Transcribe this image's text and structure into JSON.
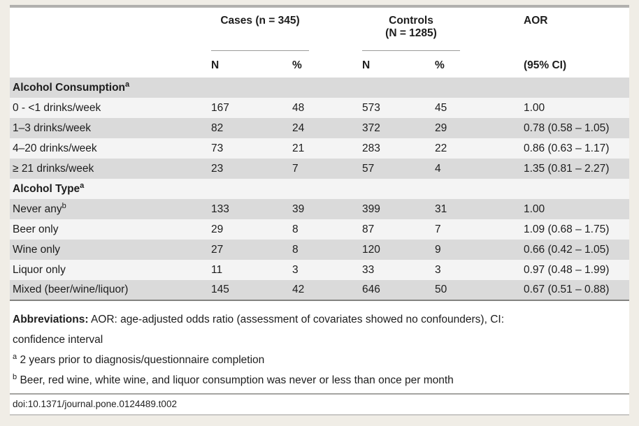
{
  "colors": {
    "page_bg": "#f0ede6",
    "card_bg": "#ffffff",
    "stripe_gray": "#dadada",
    "stripe_light": "#f4f4f4",
    "top_rule": "#b1b0ae",
    "body_rule": "#838380",
    "text": "#1d1d1d"
  },
  "table": {
    "header": {
      "cases_label": "Cases (n = 345)",
      "controls_line1": "Controls",
      "controls_line2": "(N = 1285)",
      "aor_label": "AOR",
      "cases_n": "N",
      "cases_pct": "%",
      "controls_n": "N",
      "controls_pct": "%",
      "ci_label": "(95% CI)"
    },
    "rows": [
      {
        "type": "section",
        "label": "Alcohol Consumption",
        "sup": "a"
      },
      {
        "type": "data",
        "label": "0 - <1 drinks/week",
        "sup": "",
        "cases_n": "167",
        "cases_pct": "48",
        "controls_n": "573",
        "controls_pct": "45",
        "aor": "1.00"
      },
      {
        "type": "data",
        "label": "1–3 drinks/week",
        "sup": "",
        "cases_n": "82",
        "cases_pct": "24",
        "controls_n": "372",
        "controls_pct": "29",
        "aor": "0.78 (0.58 – 1.05)"
      },
      {
        "type": "data",
        "label": "4–20 drinks/week",
        "sup": "",
        "cases_n": "73",
        "cases_pct": "21",
        "controls_n": "283",
        "controls_pct": "22",
        "aor": "0.86 (0.63 – 1.17)"
      },
      {
        "type": "data",
        "label": "≥ 21 drinks/week",
        "sup": "",
        "cases_n": "23",
        "cases_pct": "7",
        "controls_n": "57",
        "controls_pct": "4",
        "aor": "1.35 (0.81 – 2.27)"
      },
      {
        "type": "section",
        "label": "Alcohol Type",
        "sup": "a"
      },
      {
        "type": "data",
        "label": "Never any",
        "sup": "b",
        "cases_n": "133",
        "cases_pct": "39",
        "controls_n": "399",
        "controls_pct": "31",
        "aor": "1.00"
      },
      {
        "type": "data",
        "label": "Beer only",
        "sup": "",
        "cases_n": "29",
        "cases_pct": "8",
        "controls_n": "87",
        "controls_pct": "7",
        "aor": "1.09 (0.68 – 1.75)"
      },
      {
        "type": "data",
        "label": "Wine only",
        "sup": "",
        "cases_n": "27",
        "cases_pct": "8",
        "controls_n": "120",
        "controls_pct": "9",
        "aor": "0.66 (0.42 – 1.05)"
      },
      {
        "type": "data",
        "label": "Liquor only",
        "sup": "",
        "cases_n": "11",
        "cases_pct": "3",
        "controls_n": "33",
        "controls_pct": "3",
        "aor": "0.97 (0.48 – 1.99)"
      },
      {
        "type": "data",
        "label": "Mixed (beer/wine/liquor)",
        "sup": "",
        "cases_n": "145",
        "cases_pct": "42",
        "controls_n": "646",
        "controls_pct": "50",
        "aor": "0.67 (0.51 – 0.88)"
      }
    ]
  },
  "footnotes": {
    "abbreviations_label": "Abbreviations:",
    "abbreviations_line1": "AOR: age-adjusted odds ratio (assessment of covariates showed no confounders), CI:",
    "abbreviations_line2": "confidence interval",
    "note_a_sup": "a",
    "note_a_text": "2 years prior to diagnosis/questionnaire completion",
    "note_b_sup": "b",
    "note_b_text": "Beer, red wine, white wine, and liquor consumption was never or less than once per month"
  },
  "doi": "doi:10.1371/journal.pone.0124489.t002"
}
